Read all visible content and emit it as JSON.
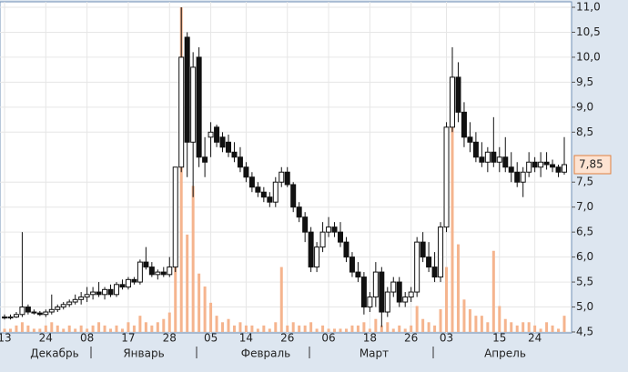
{
  "chart_data": {
    "type": "candlestick",
    "categories": [
      "13",
      null,
      null,
      null,
      null,
      null,
      null,
      "24",
      null,
      null,
      null,
      null,
      null,
      null,
      "08",
      null,
      null,
      null,
      null,
      null,
      null,
      "17",
      null,
      null,
      null,
      null,
      null,
      null,
      "28",
      null,
      null,
      null,
      null,
      null,
      null,
      "05",
      null,
      null,
      null,
      null,
      null,
      "14",
      null,
      null,
      null,
      null,
      null,
      null,
      "26",
      null,
      null,
      null,
      null,
      null,
      null,
      "06",
      null,
      null,
      null,
      null,
      null,
      null,
      "18",
      null,
      null,
      null,
      null,
      null,
      null,
      "26",
      null,
      null,
      null,
      null,
      null,
      "03",
      null,
      null,
      null,
      null,
      null,
      null,
      null,
      null,
      "15",
      null,
      null,
      null,
      null,
      null,
      "24",
      null,
      null,
      null,
      null,
      null
    ],
    "months": [
      "Декабрь",
      "Январь",
      "Февраль",
      "Март",
      "Апрель"
    ],
    "open": [
      4.8,
      4.78,
      4.8,
      4.85,
      5.0,
      4.9,
      4.88,
      4.85,
      4.9,
      4.95,
      5.0,
      5.05,
      5.1,
      5.15,
      5.2,
      5.25,
      5.3,
      5.25,
      5.35,
      5.25,
      5.45,
      5.4,
      5.55,
      5.5,
      5.9,
      5.8,
      5.65,
      5.7,
      5.65,
      5.8,
      7.8,
      10.4,
      8.3,
      10.0,
      8.0,
      8.4,
      8.6,
      8.4,
      8.3,
      8.1,
      8.0,
      7.8,
      7.6,
      7.4,
      7.3,
      7.2,
      7.1,
      7.5,
      7.7,
      7.45,
      7.0,
      6.8,
      6.5,
      5.8,
      6.2,
      6.5,
      6.6,
      6.5,
      6.3,
      6.0,
      5.7,
      5.6,
      5.0,
      5.2,
      5.7,
      4.9,
      5.3,
      5.5,
      5.1,
      5.2,
      5.3,
      6.3,
      6.0,
      5.8,
      5.6,
      6.6,
      8.6,
      9.6,
      8.9,
      8.4,
      8.3,
      8.0,
      7.9,
      8.1,
      7.9,
      8.0,
      7.8,
      7.7,
      7.5,
      7.7,
      7.9,
      7.8,
      7.9,
      7.85,
      7.8,
      7.7
    ],
    "high": [
      4.85,
      4.85,
      4.9,
      6.5,
      5.05,
      4.95,
      4.92,
      4.95,
      5.25,
      5.05,
      5.1,
      5.15,
      5.25,
      5.3,
      5.4,
      5.4,
      5.5,
      5.4,
      5.45,
      5.5,
      5.55,
      5.6,
      5.6,
      5.95,
      6.2,
      5.9,
      5.75,
      5.8,
      6.0,
      7.8,
      11.0,
      10.5,
      10.1,
      10.2,
      8.4,
      8.7,
      8.65,
      8.5,
      8.45,
      8.3,
      8.2,
      7.9,
      7.7,
      7.5,
      7.4,
      7.3,
      7.6,
      7.8,
      7.8,
      7.5,
      7.1,
      6.9,
      6.6,
      6.3,
      6.7,
      6.8,
      6.7,
      6.7,
      6.4,
      6.1,
      5.9,
      5.7,
      5.3,
      5.9,
      5.8,
      5.4,
      5.6,
      5.6,
      5.3,
      5.4,
      6.4,
      6.5,
      6.3,
      6.1,
      6.7,
      8.7,
      10.2,
      9.9,
      9.1,
      8.7,
      8.5,
      8.3,
      8.2,
      8.8,
      8.2,
      8.4,
      8.1,
      7.9,
      7.8,
      8.1,
      8.0,
      8.1,
      8.1,
      7.95,
      7.85,
      8.4
    ],
    "low": [
      4.75,
      4.75,
      4.78,
      4.8,
      4.85,
      4.85,
      4.82,
      4.8,
      4.85,
      4.9,
      4.95,
      5.0,
      5.05,
      5.05,
      5.1,
      5.15,
      5.2,
      5.15,
      5.2,
      5.2,
      5.35,
      5.35,
      5.45,
      5.45,
      5.75,
      5.6,
      5.55,
      5.6,
      5.6,
      5.7,
      7.7,
      7.6,
      7.2,
      7.8,
      7.6,
      8.0,
      8.2,
      8.1,
      8.0,
      7.9,
      7.7,
      7.5,
      7.3,
      7.2,
      7.1,
      7.0,
      7.0,
      7.4,
      7.4,
      6.9,
      6.7,
      6.3,
      5.7,
      5.7,
      6.1,
      6.4,
      6.4,
      6.2,
      5.9,
      5.6,
      5.5,
      4.85,
      4.9,
      5.0,
      4.6,
      4.8,
      5.2,
      5.0,
      5.0,
      5.1,
      5.2,
      5.9,
      5.7,
      5.5,
      5.5,
      6.5,
      8.5,
      8.7,
      8.2,
      8.1,
      7.9,
      7.8,
      7.7,
      7.8,
      7.7,
      7.7,
      7.5,
      7.4,
      7.2,
      7.6,
      7.7,
      7.6,
      7.75,
      7.7,
      7.6,
      7.65
    ],
    "close": [
      4.78,
      4.8,
      4.85,
      5.0,
      4.9,
      4.88,
      4.85,
      4.9,
      4.95,
      5.0,
      5.05,
      5.1,
      5.15,
      5.2,
      5.25,
      5.3,
      5.25,
      5.35,
      5.25,
      5.45,
      5.4,
      5.55,
      5.5,
      5.9,
      5.8,
      5.65,
      5.7,
      5.65,
      5.8,
      7.8,
      10.0,
      8.3,
      9.8,
      8.0,
      7.9,
      8.5,
      8.3,
      8.2,
      8.1,
      8.0,
      7.8,
      7.6,
      7.4,
      7.3,
      7.2,
      7.1,
      7.5,
      7.7,
      7.45,
      7.0,
      6.8,
      6.5,
      5.8,
      6.2,
      6.5,
      6.6,
      6.5,
      6.3,
      6.0,
      5.7,
      5.6,
      5.0,
      5.2,
      5.7,
      4.9,
      5.3,
      5.5,
      5.1,
      5.2,
      5.3,
      6.3,
      6.0,
      5.8,
      5.6,
      6.6,
      8.6,
      9.6,
      8.9,
      8.4,
      8.3,
      8.0,
      7.9,
      8.1,
      7.9,
      8.0,
      7.8,
      7.7,
      7.5,
      7.7,
      7.9,
      7.8,
      7.9,
      7.85,
      7.8,
      7.7,
      7.85
    ],
    "volume": [
      1,
      1,
      2,
      3,
      2,
      1,
      1,
      2,
      3,
      2,
      1,
      2,
      1,
      2,
      1,
      2,
      3,
      2,
      1,
      2,
      1,
      3,
      2,
      5,
      3,
      2,
      3,
      4,
      6,
      22,
      100,
      30,
      45,
      18,
      14,
      9,
      5,
      3,
      4,
      2,
      3,
      2,
      2,
      1,
      2,
      1,
      3,
      20,
      2,
      3,
      2,
      2,
      3,
      1,
      2,
      1,
      1,
      1,
      1,
      2,
      2,
      3,
      1,
      4,
      2,
      3,
      1,
      2,
      1,
      2,
      8,
      4,
      3,
      2,
      7,
      20,
      70,
      27,
      10,
      7,
      5,
      5,
      3,
      25,
      8,
      4,
      3,
      2,
      3,
      3,
      2,
      1,
      3,
      2,
      1,
      5
    ],
    "volume_lim": [
      0,
      100
    ],
    "ylim": [
      4.5,
      11
    ],
    "yticks": [
      {
        "value": 4.5,
        "label": "4,5"
      },
      {
        "value": 5,
        "label": "5,0"
      },
      {
        "value": 5.5,
        "label": "5,5"
      },
      {
        "value": 6,
        "label": "6,0"
      },
      {
        "value": 6.5,
        "label": "6,5"
      },
      {
        "value": 7,
        "label": "7,0"
      },
      {
        "value": 7.5,
        "label": "7,5"
      },
      {
        "value": 8.5,
        "label": "8,5"
      },
      {
        "value": 9,
        "label": "9,0"
      },
      {
        "value": 9.5,
        "label": "9,5"
      },
      {
        "value": 10,
        "label": "10,0"
      },
      {
        "value": 10.5,
        "label": "10,5"
      },
      {
        "value": 11,
        "label": "11,0"
      }
    ],
    "last_price": {
      "value": 7.85,
      "label": "7,85"
    },
    "grid": true,
    "up_color": "#ffffff",
    "down_color": "#111111",
    "volume_color": "#f5b48e"
  }
}
